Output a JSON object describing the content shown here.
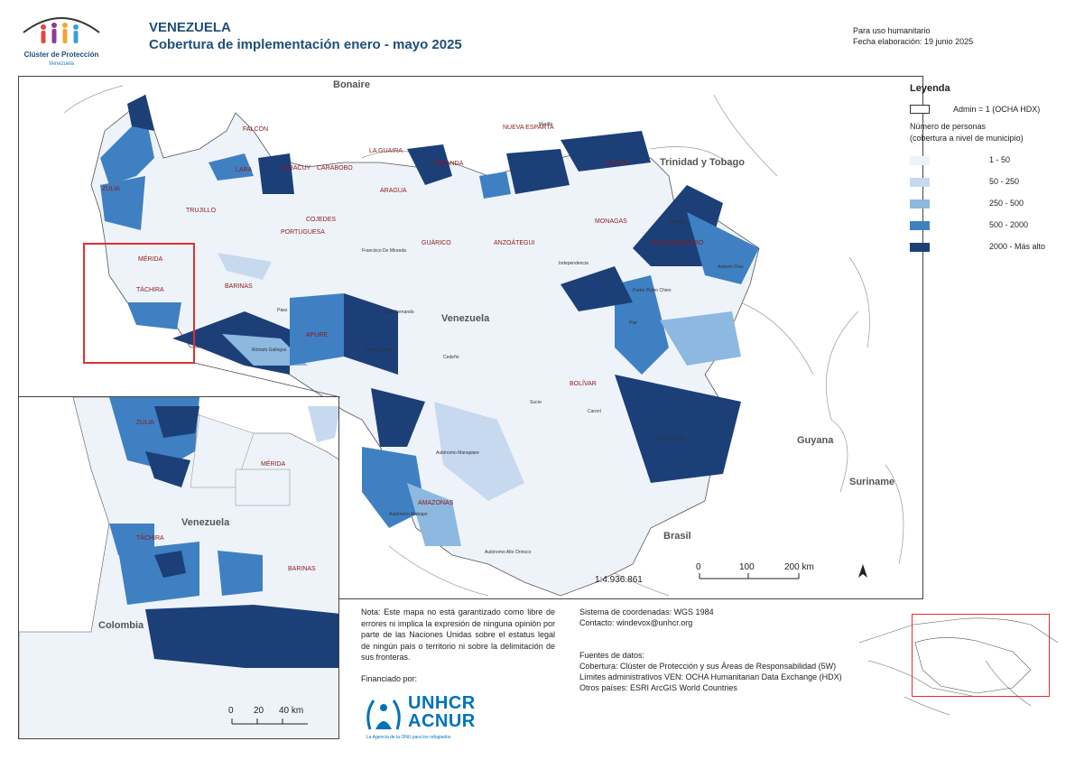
{
  "logo": {
    "org_name": "Clúster de Protección",
    "country": "Venezuela"
  },
  "header": {
    "country": "VENEZUELA",
    "subtitle": "Cobertura de implementación enero - mayo 2025",
    "usage": "Para uso humanitario",
    "date": "Fecha elaboración: 19 junio 2025"
  },
  "map": {
    "labels": {
      "bonaire": "Bonaire",
      "trinidad": "Trinidad y Tobago",
      "venezuela": "Venezuela",
      "guyana": "Guyana",
      "suriname": "Suriname",
      "brasil": "Brasil",
      "colombia": "Colombia"
    },
    "states": [
      {
        "name": "FALCÓN"
      },
      {
        "name": "ZULIA"
      },
      {
        "name": "LARA"
      },
      {
        "name": "YARACUY"
      },
      {
        "name": "CARABOBO"
      },
      {
        "name": "LA GUAIRA"
      },
      {
        "name": "MIRANDA"
      },
      {
        "name": "ARAGUA"
      },
      {
        "name": "NUEVA ESPARTA"
      },
      {
        "name": "SUCRE"
      },
      {
        "name": "TRUJILLO"
      },
      {
        "name": "PORTUGUESA"
      },
      {
        "name": "COJEDES"
      },
      {
        "name": "GUÁRICO"
      },
      {
        "name": "ANZOÁTEGUI"
      },
      {
        "name": "MONAGAS"
      },
      {
        "name": "DELTA AMACURO"
      },
      {
        "name": "MÉRIDA"
      },
      {
        "name": "BARINAS"
      },
      {
        "name": "TÁCHIRA"
      },
      {
        "name": "APURE"
      },
      {
        "name": "BOLÍVAR"
      },
      {
        "name": "AMAZONAS"
      }
    ],
    "municipalities": [
      {
        "name": "Francisco De Miranda"
      },
      {
        "name": "Autónomo Atabapo"
      },
      {
        "name": "Autónomo Manapiare"
      },
      {
        "name": "Autónomo Alto Orinoco"
      },
      {
        "name": "Cedeño"
      },
      {
        "name": "Sucre"
      },
      {
        "name": "Gran Sabana"
      },
      {
        "name": "Padre Pedro Chien"
      },
      {
        "name": "Piar"
      },
      {
        "name": "Caroní"
      },
      {
        "name": "Rómulo Gallegos"
      },
      {
        "name": "Pedro Camejo"
      },
      {
        "name": "Páez"
      },
      {
        "name": "San Fernando"
      },
      {
        "name": "Independencia"
      },
      {
        "name": "Tucupita"
      },
      {
        "name": "Antonio Díaz"
      },
      {
        "name": "Mariño"
      }
    ],
    "scale_ratio": "1:4.936.861",
    "scale_ticks": [
      "0",
      "100",
      "200 km"
    ],
    "inset_scale_ticks": [
      "0",
      "20",
      "40 km"
    ]
  },
  "inset": {
    "labels": {
      "zulia": "ZULIA",
      "merida": "MÉRIDA",
      "tachira": "TÁCHIRA",
      "barinas": "BARINAS",
      "venezuela": "Venezuela"
    }
  },
  "legend": {
    "title": "Leyenda",
    "admin_label": "Admin = 1 (OCHA HDX)",
    "subtitle_line1": "Número de personas",
    "subtitle_line2": "(cobertura a nivel de municipio)",
    "classes": [
      {
        "label": "1 - 50",
        "color": "#eef3fa"
      },
      {
        "label": "50 - 250",
        "color": "#c7d9ef"
      },
      {
        "label": "250 - 500",
        "color": "#8db8df"
      },
      {
        "label": "500 - 2000",
        "color": "#3f80c2"
      },
      {
        "label": "2000 - Más alto",
        "color": "#1c3f78"
      }
    ]
  },
  "footer": {
    "note": "Nota: Este mapa no está garantizado como libre de errores ni implica la expresión de ninguna opinión por parte de las Naciones Unidas sobre el estatus legal de ningún país o territorio ni sobre la delimitación de sus fronteras.",
    "funded_by": "Financiado por:",
    "brand_line1": "UNHCR",
    "brand_line2": "ACNUR",
    "brand_tagline": "La Agencia de la ONU para los refugiados",
    "crs": "Sistema de coordenadas: WGS 1984",
    "contact": "Contacto: windevox@unhcr.org",
    "sources_title": "Fuentes de datos:",
    "source_coverage": "Cobertura: Clúster de Protección y sus Áreas de Responsabilidad (5W)",
    "source_admin": "Límites administrativos VEN: OCHA Humanitarian Data Exchange (HDX)",
    "source_other": "Otros países: ESRI ArcGIS World Countries"
  }
}
